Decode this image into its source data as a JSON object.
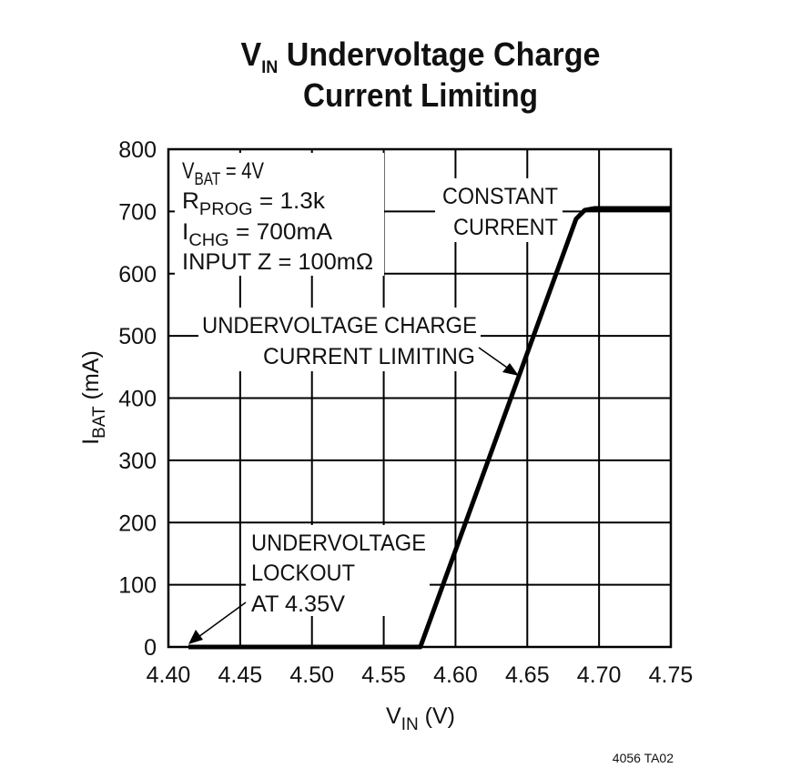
{
  "chart_data": {
    "type": "line",
    "title": {
      "prefix": "V",
      "prefix_sub": "IN",
      "line1": " Undervoltage Charge",
      "line2": "Current Limiting"
    },
    "xlabel": {
      "main": "V",
      "sub": "IN",
      "unit": " (V)"
    },
    "ylabel": {
      "main": "I",
      "sub": "BAT",
      "unit": " (mA)"
    },
    "xlim": [
      4.4,
      4.75
    ],
    "ylim": [
      0,
      800
    ],
    "x_ticks": [
      "4.40",
      "4.45",
      "4.50",
      "4.55",
      "4.60",
      "4.65",
      "4.70",
      "4.75"
    ],
    "y_ticks": [
      "0",
      "100",
      "200",
      "300",
      "400",
      "500",
      "600",
      "700",
      "800"
    ],
    "grid": true,
    "series": [
      {
        "x": [
          4.414,
          4.5755,
          4.684,
          4.69,
          4.697,
          4.75
        ],
        "y": [
          0,
          0,
          688,
          702,
          705,
          705
        ]
      }
    ],
    "conditions": [
      {
        "main": "V",
        "sub": "BAT",
        "rest": " = 4V"
      },
      {
        "main": "R",
        "sub": "PROG",
        "rest": " = 1.3k"
      },
      {
        "main": "I",
        "sub": "CHG",
        "rest": " = 700mA"
      },
      {
        "main": "INPUT Z = 100mΩ",
        "sub": "",
        "rest": ""
      }
    ],
    "annotations": {
      "constant_current": [
        "CONSTANT",
        "CURRENT"
      ],
      "undervoltage_limiting": [
        "UNDERVOLTAGE CHARGE",
        "CURRENT LIMITING"
      ],
      "lockout": [
        "UNDERVOLTAGE",
        "LOCKOUT",
        "AT 4.35V"
      ]
    },
    "line_color": "#000000"
  },
  "footer": "4056 TA02"
}
